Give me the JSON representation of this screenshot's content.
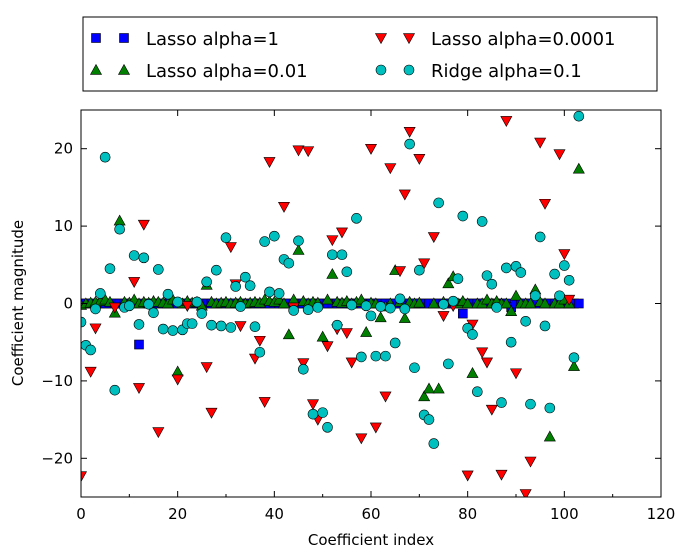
{
  "chart_data": {
    "type": "scatter",
    "xlabel": "Coefficient index",
    "ylabel": "Coefficient magnitude",
    "xlim": [
      0,
      120
    ],
    "ylim": [
      -25,
      25
    ],
    "xticks": [
      0,
      20,
      40,
      60,
      80,
      100,
      120
    ],
    "yticks": [
      -20,
      -10,
      0,
      10,
      20
    ],
    "legend": {
      "position": "top",
      "columns": 2
    },
    "series": [
      {
        "name": "Lasso alpha=1",
        "marker": "square",
        "color": "#0000ff",
        "x": [
          0,
          1,
          2,
          3,
          4,
          5,
          6,
          7,
          8,
          9,
          10,
          11,
          12,
          13,
          14,
          15,
          16,
          17,
          18,
          19,
          20,
          21,
          22,
          23,
          24,
          25,
          26,
          27,
          28,
          29,
          30,
          31,
          32,
          33,
          34,
          35,
          36,
          37,
          38,
          39,
          40,
          41,
          42,
          43,
          44,
          45,
          46,
          47,
          48,
          49,
          50,
          51,
          52,
          53,
          54,
          55,
          56,
          57,
          58,
          59,
          60,
          61,
          62,
          63,
          64,
          65,
          66,
          67,
          68,
          69,
          70,
          71,
          72,
          73,
          74,
          75,
          76,
          77,
          78,
          79,
          80,
          81,
          82,
          83,
          84,
          85,
          86,
          87,
          88,
          89,
          90,
          91,
          92,
          93,
          94,
          95,
          96,
          97,
          98,
          99,
          100,
          101,
          102,
          103
        ],
        "y": [
          0,
          0,
          0,
          0,
          0,
          0,
          0,
          0,
          0,
          0,
          0,
          0,
          -5.3,
          0,
          0,
          0,
          0,
          0,
          0,
          0,
          0,
          0,
          0,
          0,
          0,
          0,
          0,
          0,
          0,
          0,
          0,
          0,
          0,
          0,
          0,
          0,
          0,
          0,
          0,
          0,
          0,
          0,
          0,
          0,
          0,
          0,
          0,
          0,
          0,
          0,
          0,
          0,
          0,
          0,
          0,
          0,
          0,
          0,
          0,
          0,
          0,
          0,
          0,
          0,
          0,
          0,
          0,
          0,
          0,
          0,
          0,
          0,
          0,
          0,
          0,
          0,
          0,
          0,
          0,
          -1.3,
          0,
          0,
          0,
          0,
          0,
          0,
          0,
          0,
          0,
          -0.5,
          0,
          0,
          0,
          0,
          0,
          0,
          0,
          0,
          0,
          0,
          0,
          0,
          0,
          0
        ]
      },
      {
        "name": "Lasso alpha=0.01",
        "marker": "triangle-up",
        "color": "#007f00",
        "x": [
          0,
          1,
          2,
          3,
          4,
          5,
          6,
          7,
          8,
          9,
          10,
          11,
          12,
          13,
          14,
          15,
          16,
          17,
          18,
          19,
          20,
          21,
          22,
          23,
          24,
          25,
          26,
          27,
          28,
          29,
          30,
          31,
          32,
          33,
          34,
          35,
          36,
          37,
          38,
          39,
          40,
          41,
          42,
          43,
          44,
          45,
          46,
          47,
          48,
          49,
          50,
          51,
          52,
          53,
          54,
          55,
          56,
          57,
          58,
          59,
          60,
          61,
          62,
          63,
          64,
          65,
          66,
          67,
          68,
          69,
          70,
          71,
          72,
          73,
          74,
          75,
          76,
          77,
          78,
          79,
          80,
          81,
          82,
          83,
          84,
          85,
          86,
          87,
          88,
          89,
          90,
          91,
          92,
          93,
          94,
          95,
          96,
          97,
          98,
          99,
          100,
          101,
          102,
          103
        ],
        "y": [
          -0.2,
          0,
          0.1,
          0.2,
          0.3,
          0.5,
          0.2,
          -1.2,
          10.7,
          0.2,
          0.1,
          0.5,
          0,
          0.2,
          0.1,
          0.3,
          0.2,
          0.1,
          0,
          0.5,
          -8.8,
          0,
          0.3,
          0.1,
          0.2,
          -0.3,
          2.4,
          0.2,
          0,
          0.1,
          0.2,
          0,
          0.1,
          0.2,
          0,
          0.1,
          0.2,
          0.1,
          0.5,
          0.3,
          0.2,
          0.5,
          0,
          -4,
          0.5,
          6.9,
          0.3,
          0,
          0.2,
          0.1,
          -4.3,
          0.5,
          3.8,
          0.2,
          0.1,
          0.3,
          0,
          0.2,
          0.5,
          -3.7,
          0.1,
          0,
          -1.8,
          -0.4,
          0,
          4.3,
          0.2,
          -1.9,
          0.2,
          0,
          0.1,
          -12,
          -11,
          0,
          -11,
          0.2,
          2.6,
          3.5,
          0,
          0.3,
          0,
          -9,
          0,
          0,
          0.5,
          0,
          0.3,
          0,
          0,
          -1,
          1,
          0,
          0,
          0,
          1.8,
          0.2,
          0,
          -17.2,
          0,
          0,
          0.5,
          0,
          -8.1,
          17.4
        ]
      },
      {
        "name": "Lasso alpha=0.0001",
        "marker": "triangle-down",
        "color": "#ff0000",
        "x": [
          0,
          2,
          3,
          7,
          11,
          12,
          13,
          16,
          20,
          22,
          26,
          27,
          31,
          32,
          33,
          36,
          37,
          38,
          39,
          42,
          44,
          45,
          46,
          47,
          48,
          49,
          51,
          52,
          53,
          54,
          55,
          56,
          58,
          60,
          61,
          63,
          64,
          66,
          67,
          68,
          70,
          71,
          73,
          75,
          77,
          80,
          81,
          83,
          84,
          85,
          87,
          88,
          90,
          92,
          93,
          95,
          96,
          99,
          100,
          101
        ],
        "y": [
          -22.3,
          -8.8,
          -3.2,
          -0.5,
          2.8,
          -10.9,
          10.2,
          -16.6,
          -9.8,
          -0.3,
          -8.2,
          -14.1,
          7.3,
          2.5,
          -2.9,
          -7.1,
          -4.8,
          -12.7,
          18.3,
          12.5,
          -0.5,
          19.8,
          -7.7,
          19.7,
          -13,
          -15,
          -5.5,
          8.2,
          -3.3,
          9.2,
          -3.8,
          -7.6,
          -17.4,
          20,
          -16,
          -12,
          17.5,
          4.2,
          14.1,
          22.2,
          18.7,
          5.2,
          8.6,
          -1.6,
          -0.3,
          -22.2,
          -2.7,
          -6.3,
          -7.6,
          -13.7,
          -22.1,
          23.6,
          -9.0,
          -24.6,
          -20.4,
          20.8,
          12.9,
          19.3,
          6.4,
          0.5
        ]
      },
      {
        "name": "Ridge alpha=0.1",
        "marker": "circle",
        "color": "#00bfbf",
        "x": [
          0,
          1,
          2,
          3,
          4,
          5,
          6,
          7,
          8,
          9,
          10,
          11,
          12,
          13,
          14,
          15,
          16,
          17,
          18,
          19,
          20,
          21,
          22,
          23,
          24,
          25,
          26,
          27,
          28,
          29,
          30,
          31,
          32,
          33,
          34,
          35,
          36,
          37,
          38,
          39,
          40,
          41,
          42,
          43,
          44,
          45,
          46,
          47,
          48,
          49,
          50,
          51,
          52,
          53,
          54,
          55,
          56,
          57,
          58,
          59,
          60,
          61,
          62,
          63,
          64,
          65,
          66,
          67,
          68,
          69,
          70,
          71,
          72,
          73,
          74,
          75,
          76,
          77,
          78,
          79,
          80,
          81,
          82,
          83,
          84,
          85,
          86,
          87,
          88,
          89,
          90,
          91,
          92,
          93,
          94,
          95,
          96,
          97,
          98,
          99,
          100,
          101,
          102,
          103
        ],
        "y": [
          -2.4,
          -5.4,
          -6,
          -0.7,
          1.3,
          18.9,
          4.5,
          -11.2,
          9.6,
          -0.5,
          -0.3,
          6.2,
          -2.7,
          5.9,
          -0.1,
          -1.2,
          4.4,
          -3.3,
          1.2,
          -3.5,
          0.2,
          -3.4,
          -2.6,
          -2.6,
          0.2,
          -1.3,
          2.8,
          -2.8,
          4.3,
          -2.9,
          8.5,
          -3.1,
          2.2,
          -0.4,
          3.4,
          2.3,
          -3,
          -6.3,
          8,
          1.5,
          8.7,
          1.3,
          5.7,
          5.2,
          -0.9,
          8.1,
          -8.5,
          -0.8,
          -14.3,
          -0.5,
          -14.1,
          -16,
          6.3,
          -2.8,
          6.3,
          4.1,
          -0.2,
          11,
          -6.9,
          -0.3,
          -1.6,
          -6.8,
          -0.4,
          -6.8,
          -0.6,
          -5.1,
          0.6,
          -0.7,
          20.6,
          -8.3,
          4.3,
          -14.4,
          -15,
          -18.1,
          13,
          -0.1,
          -7.8,
          0.3,
          3.2,
          11.3,
          -3.2,
          -4,
          -11.4,
          10.6,
          3.6,
          2.5,
          -0.5,
          -12.8,
          4.6,
          -5,
          4.8,
          4,
          -2.3,
          -13,
          1,
          8.6,
          -2.9,
          -13.5,
          3.8,
          1,
          4.9,
          3,
          -7,
          24.2
        ]
      }
    ]
  }
}
